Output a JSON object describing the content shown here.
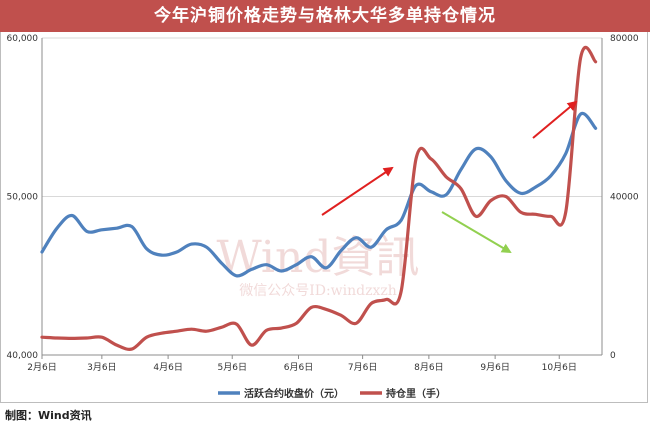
{
  "title": "今年沪铜价格走势与格林大华多单持仓情况",
  "source": "制图：Wind资讯",
  "watermark": {
    "logo": "Wind資訊",
    "subtitle": "微信公众号ID:windzxzh"
  },
  "colors": {
    "series_price": "#4f81bd",
    "series_oi": "#c0504d",
    "arrow_red": "#e02020",
    "arrow_green": "#92d050",
    "grid": "#d9d9d9"
  },
  "chart_data": {
    "type": "line",
    "title": "今年沪铜价格走势与格林大华多单持仓情况",
    "x_dates": [
      "2月6日",
      "3月6日",
      "4月6日",
      "5月6日",
      "6月6日",
      "7月6日",
      "8月6日",
      "9月6日",
      "10月6日"
    ],
    "y_left": {
      "ticks": [
        40000,
        50000,
        60000
      ],
      "tick_labels": [
        "40,000",
        "50,000",
        "60,000"
      ],
      "min": 40000,
      "max": 60000
    },
    "y_right": {
      "ticks": [
        0,
        40000,
        80000
      ],
      "tick_labels": [
        "0",
        "40000",
        "80000"
      ],
      "min": 0,
      "max": 80000
    },
    "grid_horizontal": true,
    "legend_position": "bottom",
    "series": [
      {
        "name": "活跃合约收盘价（元）",
        "axis": "left",
        "points": [
          [
            "2月6日",
            46500
          ],
          [
            "2月13日",
            48000
          ],
          [
            "2月20日",
            48800
          ],
          [
            "2月27日",
            47800
          ],
          [
            "3月6日",
            47900
          ],
          [
            "3月13日",
            48000
          ],
          [
            "3月20日",
            48100
          ],
          [
            "3月27日",
            46700
          ],
          [
            "4月3日",
            46300
          ],
          [
            "4月10日",
            46500
          ],
          [
            "4月17日",
            47000
          ],
          [
            "4月24日",
            46800
          ],
          [
            "5月1日",
            45800
          ],
          [
            "5月8日",
            45000
          ],
          [
            "5月15日",
            45400
          ],
          [
            "5月22日",
            45700
          ],
          [
            "5月29日",
            45300
          ],
          [
            "6月5日",
            45700
          ],
          [
            "6月12日",
            46200
          ],
          [
            "6月19日",
            45500
          ],
          [
            "6月26日",
            46600
          ],
          [
            "7月3日",
            47400
          ],
          [
            "7月10日",
            46800
          ],
          [
            "7月17日",
            47900
          ],
          [
            "7月24日",
            48500
          ],
          [
            "7月31日",
            50700
          ],
          [
            "8月7日",
            50300
          ],
          [
            "8月14日",
            50100
          ],
          [
            "8月21日",
            51700
          ],
          [
            "8月28日",
            53000
          ],
          [
            "9月4日",
            52500
          ],
          [
            "9月11日",
            51000
          ],
          [
            "9月18日",
            50200
          ],
          [
            "9月25日",
            50600
          ],
          [
            "10月2日",
            51300
          ],
          [
            "10月9日",
            52700
          ],
          [
            "10月16日",
            55200
          ],
          [
            "10月23日",
            54300
          ]
        ]
      },
      {
        "name": "持仓里（手）",
        "axis": "right",
        "points": [
          [
            "2月6日",
            4500
          ],
          [
            "2月13日",
            4300
          ],
          [
            "2月20日",
            4200
          ],
          [
            "2月27日",
            4300
          ],
          [
            "3月6日",
            4500
          ],
          [
            "3月13日",
            2500
          ],
          [
            "3月20日",
            1500
          ],
          [
            "3月27日",
            4500
          ],
          [
            "4月3日",
            5500
          ],
          [
            "4月10日",
            6000
          ],
          [
            "4月17日",
            6500
          ],
          [
            "4月24日",
            6000
          ],
          [
            "5月1日",
            7000
          ],
          [
            "5月8日",
            7800
          ],
          [
            "5月15日",
            2500
          ],
          [
            "5月22日",
            6200
          ],
          [
            "5月29日",
            6800
          ],
          [
            "6月5日",
            8000
          ],
          [
            "6月12日",
            12000
          ],
          [
            "6月19日",
            11500
          ],
          [
            "6月26日",
            10000
          ],
          [
            "7月3日",
            8000
          ],
          [
            "7月10日",
            13000
          ],
          [
            "7月17日",
            14000
          ],
          [
            "7月24日",
            16000
          ],
          [
            "7月31日",
            49500
          ],
          [
            "8月7日",
            49500
          ],
          [
            "8月14日",
            45000
          ],
          [
            "8月21日",
            42000
          ],
          [
            "8月28日",
            35000
          ],
          [
            "9月4日",
            39000
          ],
          [
            "9月11日",
            40000
          ],
          [
            "9月18日",
            36000
          ],
          [
            "9月25日",
            35500
          ],
          [
            "10月2日",
            35000
          ],
          [
            "10月9日",
            36000
          ],
          [
            "10月16日",
            75000
          ],
          [
            "10月23日",
            74000
          ]
        ]
      }
    ]
  }
}
